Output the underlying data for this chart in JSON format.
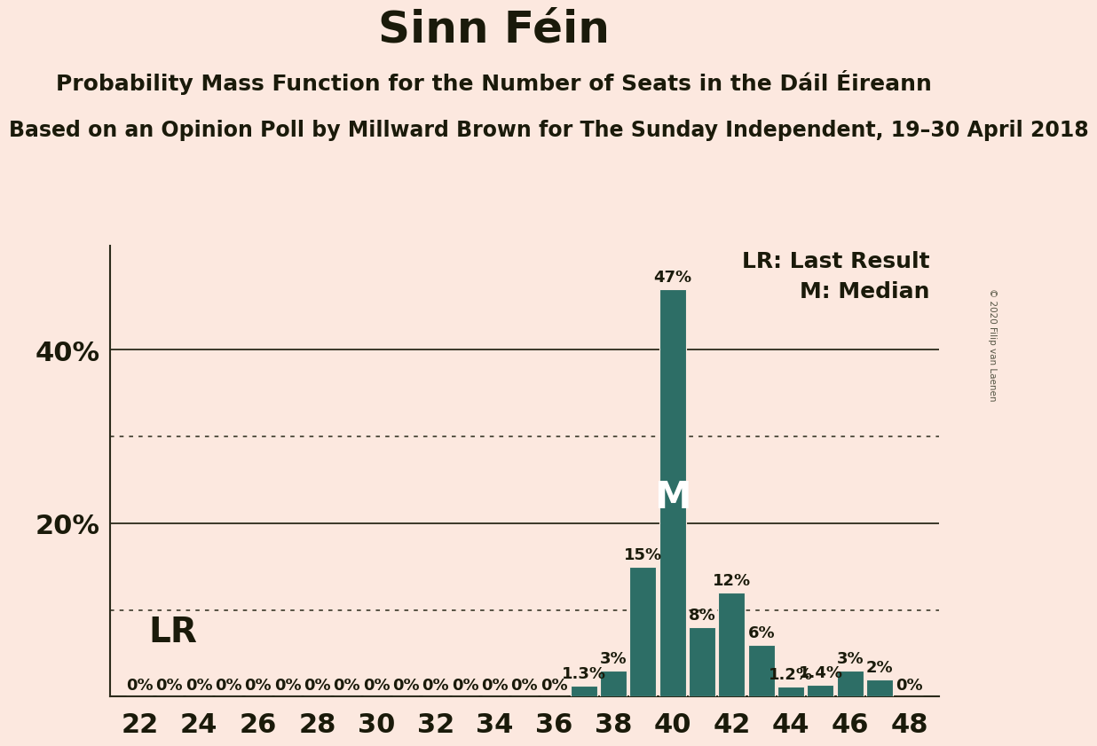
{
  "title": "Sinn Féin",
  "subtitle": "Probability Mass Function for the Number of Seats in the Dáil Éireann",
  "sub2": "Based on an Opinion Poll by Millward Brown for The Sunday Independent, 19–30 April 2018",
  "copyright": "© 2020 Filip van Laenen",
  "legend_lr": "LR: Last Result",
  "legend_m": "M: Median",
  "lr_label": "LR",
  "median_label": "M",
  "median_seat": 40,
  "background_color": "#fce8df",
  "bar_color": "#2d6e66",
  "seats": [
    22,
    23,
    24,
    25,
    26,
    27,
    28,
    29,
    30,
    31,
    32,
    33,
    34,
    35,
    36,
    37,
    38,
    39,
    40,
    41,
    42,
    43,
    44,
    45,
    46,
    47,
    48
  ],
  "probs": [
    0,
    0,
    0,
    0,
    0,
    0,
    0,
    0,
    0,
    0,
    0,
    0,
    0,
    0,
    0,
    1.3,
    3,
    15,
    47,
    8,
    12,
    6,
    1.2,
    1.4,
    3,
    2,
    0
  ],
  "xlim": [
    21,
    49
  ],
  "ylim": [
    0,
    52
  ],
  "xticks": [
    22,
    24,
    26,
    28,
    30,
    32,
    34,
    36,
    38,
    40,
    42,
    44,
    46,
    48
  ],
  "solid_yticks": [
    20,
    40
  ],
  "dotted_yticks": [
    10,
    30
  ],
  "title_fontsize": 36,
  "subtitle_fontsize": 18,
  "sub2_fontsize": 17,
  "axis_tick_fontsize": 22,
  "bar_label_fontsize": 13,
  "legend_fontsize": 18,
  "lr_fontsize": 28,
  "median_fontsize": 30,
  "ytick_fontsize": 22
}
